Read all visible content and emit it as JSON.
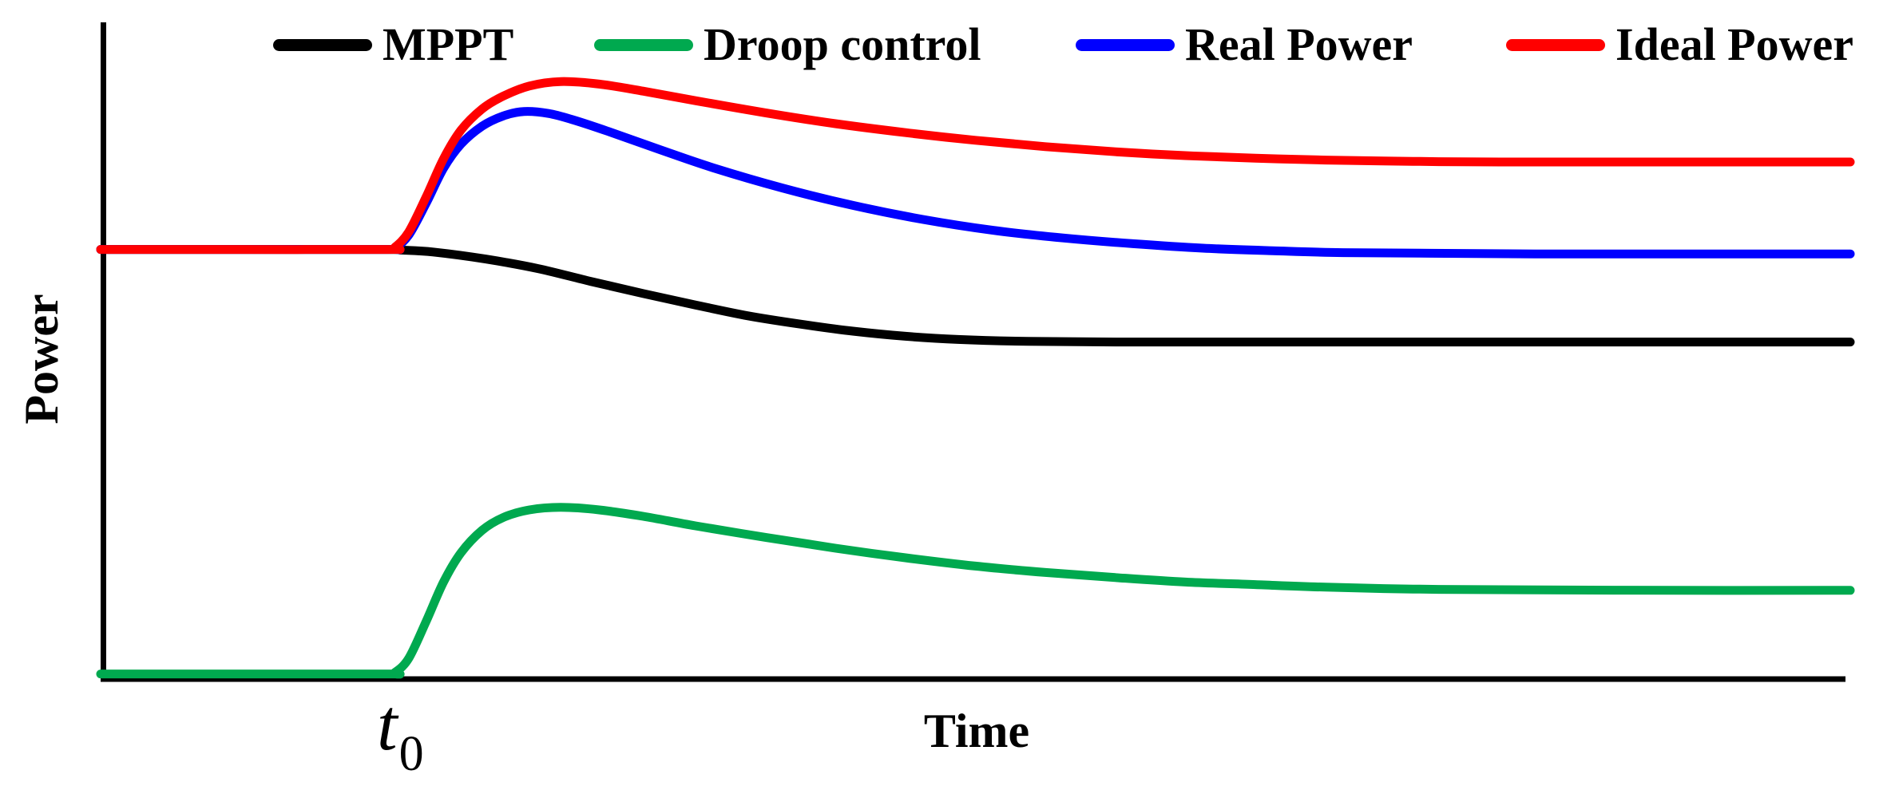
{
  "chart_data": {
    "type": "line",
    "title": "",
    "xlabel": "Time",
    "ylabel": "Power",
    "x_tick": {
      "main": "t",
      "sub": "0",
      "t": 0.168
    },
    "axis_ranges": {
      "time": [
        0,
        1
      ],
      "power": [
        0,
        100
      ]
    },
    "units": "arbitrary (axes are unlabeled, qualitative plot)",
    "grid": false,
    "legend_position": "top-horizontal",
    "event": "step change occurs at t0; before t0 MPPT, Real Power and Ideal Power coincide at ~67 and Droop control is 0",
    "series": [
      {
        "name": "MPPT",
        "color": "#000000",
        "behavior": "flat 67.3 until t0, monotonic decay to 52.8 (no overshoot)",
        "points": [
          [
            0,
            67.3
          ],
          [
            0.08,
            67.3
          ],
          [
            0.164,
            67.3
          ],
          [
            0.172,
            67.2
          ],
          [
            0.19,
            66.9
          ],
          [
            0.22,
            65.8
          ],
          [
            0.25,
            64.3
          ],
          [
            0.28,
            62.3
          ],
          [
            0.31,
            60.4
          ],
          [
            0.34,
            58.6
          ],
          [
            0.37,
            56.9
          ],
          [
            0.4,
            55.6
          ],
          [
            0.43,
            54.5
          ],
          [
            0.46,
            53.7
          ],
          [
            0.49,
            53.2
          ],
          [
            0.53,
            52.9
          ],
          [
            0.58,
            52.8
          ],
          [
            0.65,
            52.8
          ],
          [
            0.75,
            52.8
          ],
          [
            0.85,
            52.8
          ],
          [
            1,
            52.8
          ]
        ]
      },
      {
        "name": "Droop control",
        "color": "#00A94F",
        "behavior": "zero until t0, overshoot peak 26.9 at t=0.263, settles at 13.9",
        "points": [
          [
            0,
            0.8
          ],
          [
            0.08,
            0.8
          ],
          [
            0.164,
            0.8
          ],
          [
            0.168,
            1.0
          ],
          [
            0.176,
            3.2
          ],
          [
            0.186,
            9.0
          ],
          [
            0.196,
            15.2
          ],
          [
            0.206,
            19.8
          ],
          [
            0.218,
            23.3
          ],
          [
            0.23,
            25.3
          ],
          [
            0.245,
            26.5
          ],
          [
            0.263,
            26.9
          ],
          [
            0.285,
            26.5
          ],
          [
            0.31,
            25.5
          ],
          [
            0.34,
            24.0
          ],
          [
            0.38,
            22.2
          ],
          [
            0.42,
            20.5
          ],
          [
            0.46,
            19.0
          ],
          [
            0.5,
            17.7
          ],
          [
            0.54,
            16.7
          ],
          [
            0.58,
            15.9
          ],
          [
            0.62,
            15.2
          ],
          [
            0.66,
            14.8
          ],
          [
            0.7,
            14.4
          ],
          [
            0.75,
            14.1
          ],
          [
            0.8,
            14.0
          ],
          [
            0.9,
            13.9
          ],
          [
            1,
            13.9
          ]
        ]
      },
      {
        "name": "Real Power",
        "color": "#0000FF",
        "behavior": "flat 67.3 until t0, overshoot peak 88.9 at t=0.242, settles back to 66.6",
        "points": [
          [
            0,
            67.3
          ],
          [
            0.08,
            67.3
          ],
          [
            0.164,
            67.3
          ],
          [
            0.168,
            67.5
          ],
          [
            0.176,
            69.5
          ],
          [
            0.186,
            74.5
          ],
          [
            0.196,
            80.0
          ],
          [
            0.206,
            83.8
          ],
          [
            0.218,
            86.6
          ],
          [
            0.23,
            88.2
          ],
          [
            0.242,
            88.9
          ],
          [
            0.256,
            88.6
          ],
          [
            0.27,
            87.6
          ],
          [
            0.29,
            85.8
          ],
          [
            0.32,
            82.9
          ],
          [
            0.35,
            80.1
          ],
          [
            0.39,
            76.9
          ],
          [
            0.43,
            74.2
          ],
          [
            0.47,
            72.0
          ],
          [
            0.51,
            70.3
          ],
          [
            0.55,
            69.1
          ],
          [
            0.59,
            68.2
          ],
          [
            0.63,
            67.5
          ],
          [
            0.67,
            67.1
          ],
          [
            0.71,
            66.8
          ],
          [
            0.76,
            66.7
          ],
          [
            0.82,
            66.6
          ],
          [
            0.9,
            66.6
          ],
          [
            1,
            66.6
          ]
        ]
      },
      {
        "name": "Ideal Power",
        "color": "#FF0000",
        "behavior": "flat 67.3 until t0, overshoot peak 93.6 at t=0.263, settles at 81.0",
        "points": [
          [
            0,
            67.3
          ],
          [
            0.08,
            67.3
          ],
          [
            0.164,
            67.3
          ],
          [
            0.168,
            67.6
          ],
          [
            0.176,
            70.0
          ],
          [
            0.186,
            75.5
          ],
          [
            0.196,
            81.5
          ],
          [
            0.206,
            86.0
          ],
          [
            0.218,
            89.3
          ],
          [
            0.23,
            91.3
          ],
          [
            0.245,
            92.9
          ],
          [
            0.263,
            93.6
          ],
          [
            0.285,
            93.2
          ],
          [
            0.31,
            92.1
          ],
          [
            0.34,
            90.6
          ],
          [
            0.38,
            88.7
          ],
          [
            0.42,
            87.0
          ],
          [
            0.46,
            85.6
          ],
          [
            0.5,
            84.4
          ],
          [
            0.54,
            83.4
          ],
          [
            0.58,
            82.6
          ],
          [
            0.62,
            82.0
          ],
          [
            0.66,
            81.6
          ],
          [
            0.7,
            81.3
          ],
          [
            0.75,
            81.1
          ],
          [
            0.8,
            81.0
          ],
          [
            0.9,
            81.0
          ],
          [
            1,
            81.0
          ]
        ]
      }
    ]
  },
  "colors": {
    "axis": "#000000",
    "background": "#FFFFFF",
    "mppt": "#000000",
    "droop": "#00A94F",
    "real": "#0000FF",
    "ideal": "#FF0000"
  }
}
